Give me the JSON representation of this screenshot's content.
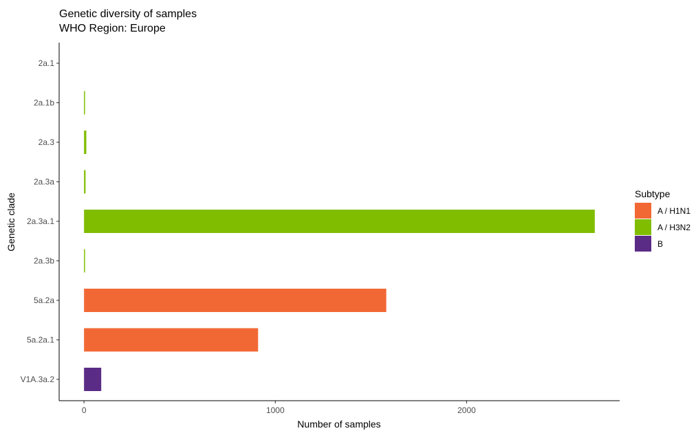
{
  "chart_data": {
    "type": "bar",
    "orientation": "horizontal",
    "title": "Genetic diversity of samples",
    "subtitle": "WHO Region: Europe",
    "xlabel": "Number of samples",
    "ylabel": "Genetic clade",
    "xlim": [
      -130,
      2800
    ],
    "xticks": [
      0,
      1000,
      2000
    ],
    "grid": false,
    "legend": {
      "title": "Subtype",
      "position": "right",
      "items": [
        {
          "name": "A / H1N1",
          "color": "#F26835"
        },
        {
          "name": "A / H3N2",
          "color": "#80BD00"
        },
        {
          "name": "B",
          "color": "#5B2C86"
        }
      ]
    },
    "categories": [
      "2a.1",
      "2a.1b",
      "2a.3",
      "2a.3a",
      "2a.3a.1",
      "2a.3b",
      "5a.2a",
      "5a.2a.1",
      "V1A.3a.2"
    ],
    "bars": [
      {
        "category": "2a.1",
        "value": 0,
        "subtype": "A / H3N2"
      },
      {
        "category": "2a.1b",
        "value": 4,
        "subtype": "A / H3N2"
      },
      {
        "category": "2a.3",
        "value": 12,
        "subtype": "A / H3N2"
      },
      {
        "category": "2a.3a",
        "value": 8,
        "subtype": "A / H3N2"
      },
      {
        "category": "2a.3a.1",
        "value": 2670,
        "subtype": "A / H3N2"
      },
      {
        "category": "2a.3b",
        "value": 3,
        "subtype": "A / H3N2"
      },
      {
        "category": "5a.2a",
        "value": 1580,
        "subtype": "A / H1N1"
      },
      {
        "category": "5a.2a.1",
        "value": 910,
        "subtype": "A / H1N1"
      },
      {
        "category": "V1A.3a.2",
        "value": 90,
        "subtype": "B"
      }
    ]
  }
}
